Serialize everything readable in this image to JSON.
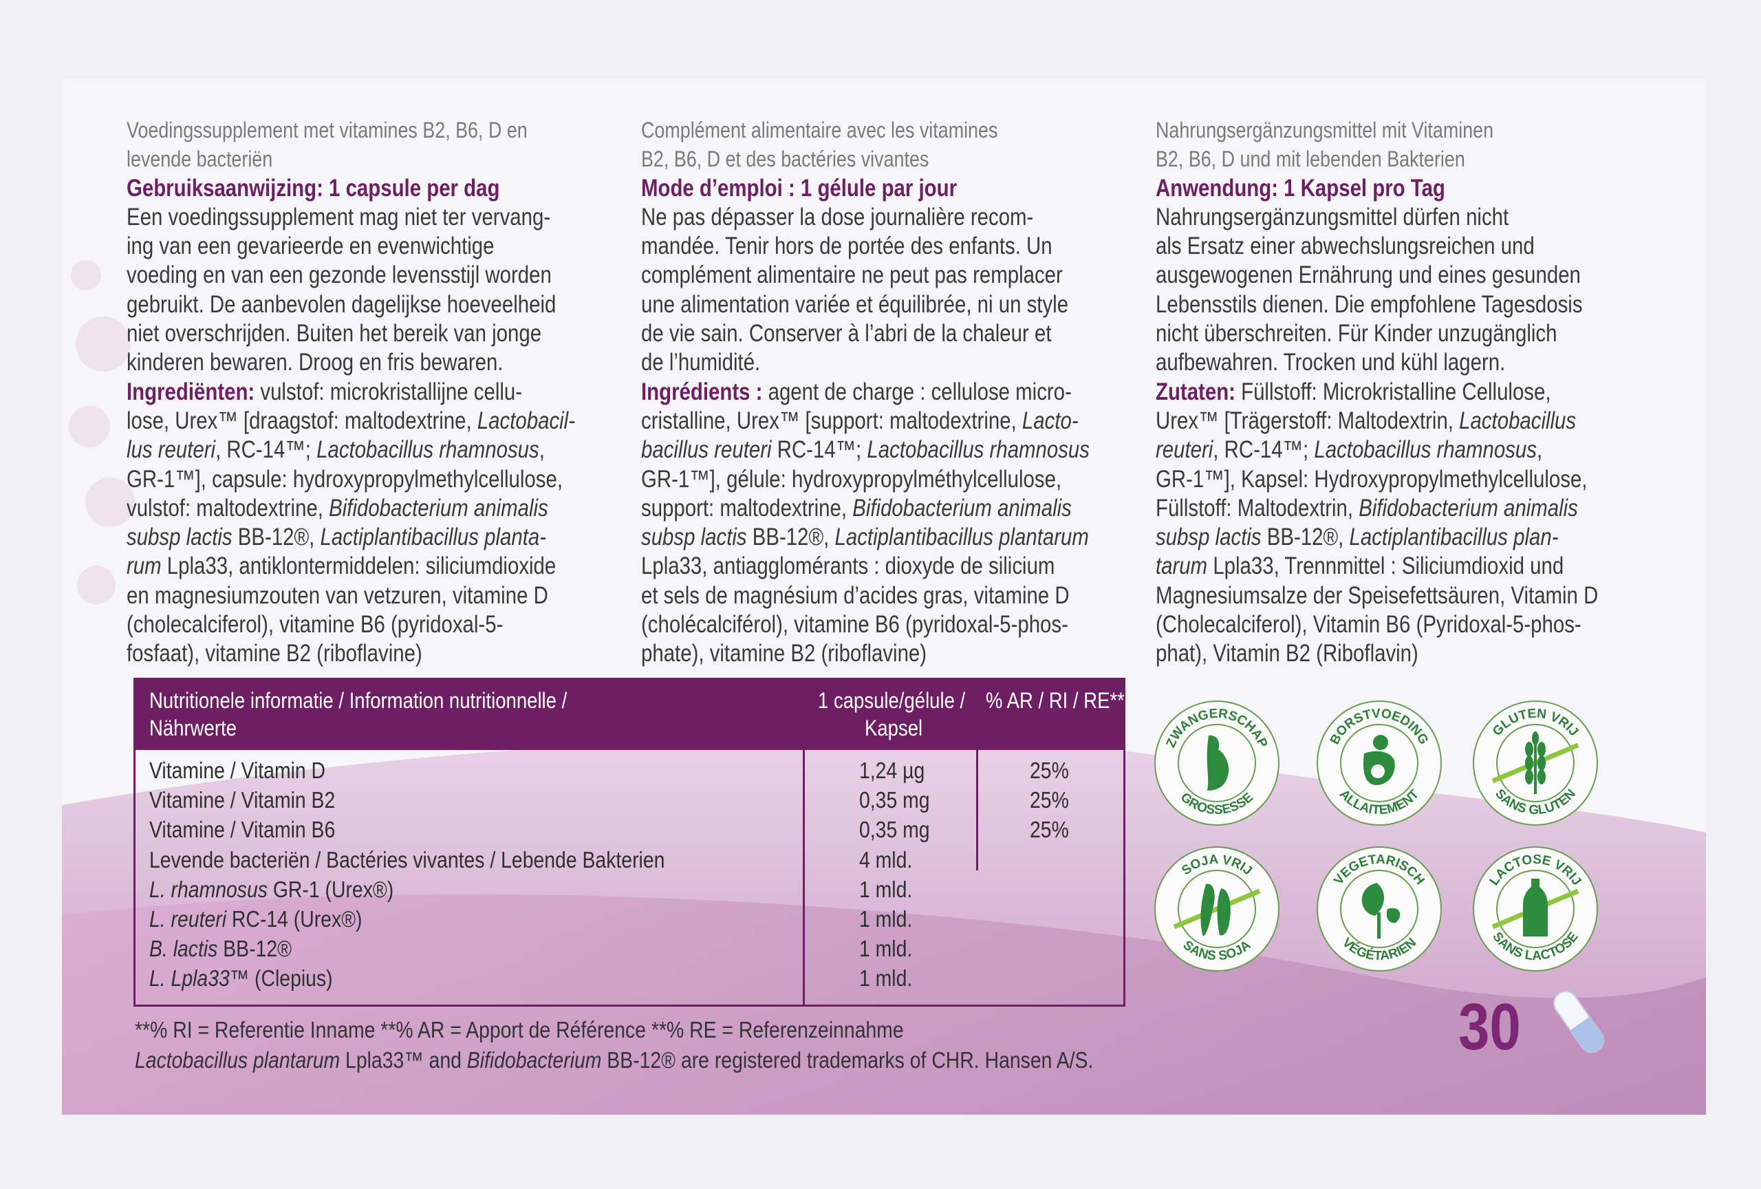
{
  "columns": [
    {
      "lang": "nl",
      "lines": [
        {
          "c": "intro",
          "s": [
            {
              "t": "Voedingssupplement met vitamines B2, B6, D en"
            }
          ]
        },
        {
          "c": "intro",
          "s": [
            {
              "t": "levende bacteriën"
            }
          ]
        },
        {
          "c": "head",
          "s": [
            {
              "t": "Gebruiksaanwijzing: 1 capsule per dag"
            }
          ]
        },
        {
          "c": "body",
          "s": [
            {
              "t": "Een voedingssupplement mag niet ter vervang-"
            }
          ]
        },
        {
          "c": "body",
          "s": [
            {
              "t": "ing van een gevarieerde en evenwichtige"
            }
          ]
        },
        {
          "c": "body",
          "s": [
            {
              "t": "voeding en van een gezonde levensstijl worden"
            }
          ]
        },
        {
          "c": "body",
          "s": [
            {
              "t": "gebruikt. De aanbevolen dagelijkse hoeveelheid"
            }
          ]
        },
        {
          "c": "body",
          "s": [
            {
              "t": "niet overschrijden. Buiten het bereik van jonge"
            }
          ]
        },
        {
          "c": "body",
          "s": [
            {
              "t": "kinderen bewaren. Droog en fris bewaren."
            }
          ]
        },
        {
          "c": "body",
          "s": [
            {
              "t": "Ingrediënten:",
              "b": 1
            },
            {
              "t": " vulstof: microkristallijne cellu-"
            }
          ]
        },
        {
          "c": "body",
          "s": [
            {
              "t": "lose, Urex™ [draagstof: maltodextrine, "
            },
            {
              "t": "Lactobacil-",
              "i": 1
            }
          ]
        },
        {
          "c": "body",
          "s": [
            {
              "t": "lus reuteri",
              "i": 1
            },
            {
              "t": ", RC-14™; "
            },
            {
              "t": "Lactobacillus rhamnosus",
              "i": 1
            },
            {
              "t": ","
            }
          ]
        },
        {
          "c": "body",
          "s": [
            {
              "t": "GR-1™], capsule: hydroxypropylmethylcellulose,"
            }
          ]
        },
        {
          "c": "body",
          "s": [
            {
              "t": "vulstof: maltodextrine, "
            },
            {
              "t": "Bifidobacterium animalis",
              "i": 1
            }
          ]
        },
        {
          "c": "body",
          "s": [
            {
              "t": "subsp lactis",
              "i": 1
            },
            {
              "t": " BB-12®, "
            },
            {
              "t": "Lactiplantibacillus planta-",
              "i": 1
            }
          ]
        },
        {
          "c": "body",
          "s": [
            {
              "t": "rum",
              "i": 1
            },
            {
              "t": " Lpla33, antiklontermiddelen: siliciumdioxide"
            }
          ]
        },
        {
          "c": "body",
          "s": [
            {
              "t": "en magnesiumzouten van vetzuren, vitamine D"
            }
          ]
        },
        {
          "c": "body",
          "s": [
            {
              "t": "(cholecalciferol), vitamine B6 (pyridoxal-5-"
            }
          ]
        },
        {
          "c": "body",
          "s": [
            {
              "t": "fosfaat), vitamine B2 (riboflavine)"
            }
          ]
        }
      ]
    },
    {
      "lang": "fr",
      "lines": [
        {
          "c": "intro",
          "s": [
            {
              "t": "Complément alimentaire avec les vitamines"
            }
          ]
        },
        {
          "c": "intro",
          "s": [
            {
              "t": "B2, B6, D et des bactéries vivantes"
            }
          ]
        },
        {
          "c": "head",
          "s": [
            {
              "t": "Mode d’emploi : 1 gélule par jour"
            }
          ]
        },
        {
          "c": "body",
          "s": [
            {
              "t": "Ne pas dépasser la dose journalière recom-"
            }
          ]
        },
        {
          "c": "body",
          "s": [
            {
              "t": "mandée. Tenir hors de portée des enfants. Un"
            }
          ]
        },
        {
          "c": "body",
          "s": [
            {
              "t": "complément alimentaire ne peut pas remplacer"
            }
          ]
        },
        {
          "c": "body",
          "s": [
            {
              "t": "une alimentation variée et équilibrée, ni un style"
            }
          ]
        },
        {
          "c": "body",
          "s": [
            {
              "t": "de vie sain. Conserver à l’abri de la chaleur et"
            }
          ]
        },
        {
          "c": "body",
          "s": [
            {
              "t": "de l’humidité."
            }
          ]
        },
        {
          "c": "body",
          "s": [
            {
              "t": "Ingrédients :",
              "b": 1
            },
            {
              "t": " agent de charge : cellulose micro-"
            }
          ]
        },
        {
          "c": "body",
          "s": [
            {
              "t": "cristalline, Urex™ [support: maltodextrine, "
            },
            {
              "t": "Lacto-",
              "i": 1
            }
          ]
        },
        {
          "c": "body",
          "s": [
            {
              "t": "bacillus reuteri",
              "i": 1
            },
            {
              "t": " RC-14™; "
            },
            {
              "t": "Lactobacillus rhamnosus",
              "i": 1
            }
          ]
        },
        {
          "c": "body",
          "s": [
            {
              "t": "GR-1™], gélule: hydroxypropylméthylcellulose,"
            }
          ]
        },
        {
          "c": "body",
          "s": [
            {
              "t": "support: maltodextrine, "
            },
            {
              "t": "Bifidobacterium animalis",
              "i": 1
            }
          ]
        },
        {
          "c": "body",
          "s": [
            {
              "t": "subsp lactis",
              "i": 1
            },
            {
              "t": " BB-12®, "
            },
            {
              "t": "Lactiplantibacillus plantarum",
              "i": 1
            }
          ]
        },
        {
          "c": "body",
          "s": [
            {
              "t": "Lpla33, antiagglomérants : dioxyde de silicium"
            }
          ]
        },
        {
          "c": "body",
          "s": [
            {
              "t": "et sels de magnésium d’acides gras, vitamine D"
            }
          ]
        },
        {
          "c": "body",
          "s": [
            {
              "t": "(cholécalciférol), vitamine B6 (pyridoxal-5-phos-"
            }
          ]
        },
        {
          "c": "body",
          "s": [
            {
              "t": "phate), vitamine B2 (riboflavine)"
            }
          ]
        }
      ]
    },
    {
      "lang": "de",
      "lines": [
        {
          "c": "intro",
          "s": [
            {
              "t": "Nahrungsergänzungsmittel mit Vitaminen"
            }
          ]
        },
        {
          "c": "intro",
          "s": [
            {
              "t": "B2, B6, D und mit lebenden Bakterien"
            }
          ]
        },
        {
          "c": "head",
          "s": [
            {
              "t": "Anwendung: 1 Kapsel pro Tag"
            }
          ]
        },
        {
          "c": "body",
          "s": [
            {
              "t": "Nahrungsergänzungsmittel dürfen nicht"
            }
          ]
        },
        {
          "c": "body",
          "s": [
            {
              "t": "als Ersatz einer abwechslungsreichen und"
            }
          ]
        },
        {
          "c": "body",
          "s": [
            {
              "t": "ausgewogenen Ernährung und eines gesunden"
            }
          ]
        },
        {
          "c": "body",
          "s": [
            {
              "t": "Lebensstils dienen. Die empfohlene Tagesdosis"
            }
          ]
        },
        {
          "c": "body",
          "s": [
            {
              "t": "nicht überschreiten. Für Kinder unzugänglich"
            }
          ]
        },
        {
          "c": "body",
          "s": [
            {
              "t": "aufbewahren. Trocken und kühl lagern."
            }
          ]
        },
        {
          "c": "body",
          "s": [
            {
              "t": "Zutaten:",
              "b": 1
            },
            {
              "t": " Füllstoff: Microkristalline Cellulose,"
            }
          ]
        },
        {
          "c": "body",
          "s": [
            {
              "t": "Urex™ [Trägerstoff: Maltodextrin, "
            },
            {
              "t": "Lactobacillus",
              "i": 1
            }
          ]
        },
        {
          "c": "body",
          "s": [
            {
              "t": "reuteri",
              "i": 1
            },
            {
              "t": ", RC-14™; "
            },
            {
              "t": "Lactobacillus rhamnosus",
              "i": 1
            },
            {
              "t": ","
            }
          ]
        },
        {
          "c": "body",
          "s": [
            {
              "t": "GR-1™], Kapsel: Hydroxypropylmethylcellulose,"
            }
          ]
        },
        {
          "c": "body",
          "s": [
            {
              "t": "Füllstoff: Maltodextrin, "
            },
            {
              "t": "Bifidobacterium animalis",
              "i": 1
            }
          ]
        },
        {
          "c": "body",
          "s": [
            {
              "t": "subsp lactis",
              "i": 1
            },
            {
              "t": " BB-12®, "
            },
            {
              "t": "Lactiplantibacillus plan-",
              "i": 1
            }
          ]
        },
        {
          "c": "body",
          "s": [
            {
              "t": "tarum",
              "i": 1
            },
            {
              "t": " Lpla33, Trennmittel : Siliciumdioxid und"
            }
          ]
        },
        {
          "c": "body",
          "s": [
            {
              "t": "Magnesiumsalze der  Speisefettsäuren, Vitamin D"
            }
          ]
        },
        {
          "c": "body",
          "s": [
            {
              "t": "(Cholecalciferol), Vitamin B6 (Pyridoxal-5-phos-"
            }
          ]
        },
        {
          "c": "body",
          "s": [
            {
              "t": "phat), Vitamin B2 (Riboflavin)"
            }
          ]
        }
      ]
    }
  ],
  "table": {
    "header": {
      "name_line1": "Nutritionele informatie / Information nutritionnelle /",
      "name_line2": "Nährwerte",
      "amount_line1": "1 capsule/gélule /",
      "amount_line2": "Kapsel",
      "ri": "% AR / RI / RE**"
    },
    "rows": [
      {
        "name": [
          {
            "t": "Vitamine / Vitamin D"
          }
        ],
        "amount": "1,24 µg",
        "ri": "25%"
      },
      {
        "name": [
          {
            "t": "Vitamine / Vitamin B2"
          }
        ],
        "amount": "0,35 mg",
        "ri": "25%"
      },
      {
        "name": [
          {
            "t": "Vitamine / Vitamin B6"
          }
        ],
        "amount": "0,35 mg",
        "ri": "25%"
      },
      {
        "name": [
          {
            "t": "Levende bacteriën / Bactéries vivantes / Lebende Bakterien"
          }
        ],
        "amount": "4 mld.",
        "ri": ""
      },
      {
        "name": [
          {
            "t": "L. rhamnosus",
            "i": 1
          },
          {
            "t": " GR-1 (Urex®)"
          }
        ],
        "amount": "1 mld.",
        "ri": ""
      },
      {
        "name": [
          {
            "t": "L. reuteri",
            "i": 1
          },
          {
            "t": " RC-14 (Urex®)"
          }
        ],
        "amount": "1 mld.",
        "ri": ""
      },
      {
        "name": [
          {
            "t": "B. lactis",
            "i": 1
          },
          {
            "t": " BB-12®"
          }
        ],
        "amount": "1 mld.",
        "ri": ""
      },
      {
        "name": [
          {
            "t": "L. Lpla33",
            "i": 1
          },
          {
            "t": "™ (Clepius)"
          }
        ],
        "amount": "1 mld.",
        "ri": ""
      }
    ]
  },
  "footnotes": [
    [
      {
        "t": "**% RI = Referentie Inname **% AR = Apport de Référence **% RE = Referenzeinnahme"
      }
    ],
    [
      {
        "t": "Lactobacillus plantarum",
        "i": 1
      },
      {
        "t": " Lpla33™ and "
      },
      {
        "t": "Bifidobacterium",
        "i": 1
      },
      {
        "t": " BB-12® are registered trademarks of CHR. Hansen A/S."
      }
    ]
  ],
  "badges": [
    {
      "top": "ZWANGERSCHAP",
      "bottom": "GROSSESSE",
      "icon": "pregnancy-icon",
      "crossed": false
    },
    {
      "top": "BORSTVOEDING",
      "bottom": "ALLAITEMENT",
      "icon": "breastfeeding-icon",
      "crossed": false
    },
    {
      "top": "GLUTEN VRIJ",
      "bottom": "SANS GLUTEN",
      "icon": "wheat-icon",
      "crossed": true
    },
    {
      "top": "SOJA VRIJ",
      "bottom": "SANS SOJA",
      "icon": "soy-icon",
      "crossed": true
    },
    {
      "top": "VEGETARISCH",
      "bottom": "VÉGÉTARIEN",
      "icon": "leaf-icon",
      "crossed": false
    },
    {
      "top": "LACTOSE VRIJ",
      "bottom": "SANS LACTOSE",
      "icon": "bottle-icon",
      "crossed": true
    }
  ],
  "count": "30",
  "colors": {
    "brand_purple": "#6e1f63",
    "badge_green": "#2e8b3e",
    "text": "#3a3a3a"
  }
}
